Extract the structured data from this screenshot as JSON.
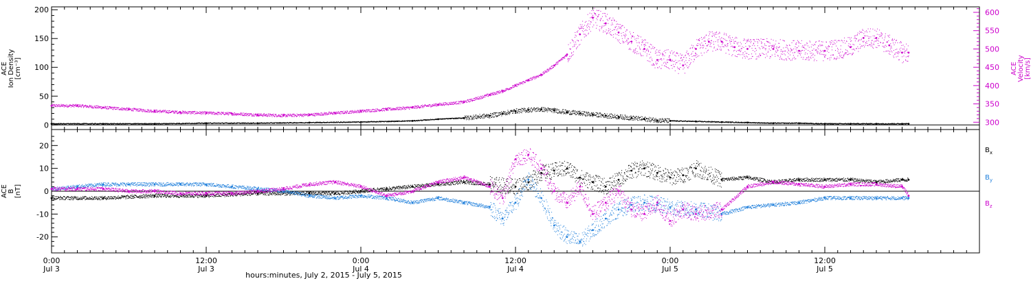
{
  "xlabel": "hours:minutes, July  2, 2015 - July  5, 2015",
  "x_ticks": [
    {
      "time": "0:00",
      "day": "Jul 3",
      "hour": 0
    },
    {
      "time": "12:00",
      "day": "Jul 3",
      "hour": 12
    },
    {
      "time": "0:00",
      "day": "Jul 4",
      "hour": 24
    },
    {
      "time": "12:00",
      "day": "Jul 4",
      "hour": 36
    },
    {
      "time": "0:00",
      "day": "Jul 5",
      "hour": 48
    },
    {
      "time": "12:00",
      "day": "Jul 5",
      "hour": 60
    }
  ],
  "chart_data": [
    {
      "type": "scatter",
      "xlim_hours": [
        0,
        72
      ],
      "ylabel": [
        "ACE",
        "Ion Density",
        "[cm⁻³]"
      ],
      "ylim": [
        -8,
        205
      ],
      "yticks": [
        0,
        50,
        100,
        150,
        200
      ],
      "y2label": [
        "ACE",
        "Velocity",
        "[km/s]"
      ],
      "y2lim": [
        280,
        615
      ],
      "y2ticks": [
        300,
        350,
        400,
        450,
        500,
        550,
        600
      ],
      "series": [
        {
          "axis": "left",
          "color": "#000000",
          "x": [
            0,
            4,
            8,
            12,
            16,
            20,
            24,
            28,
            30,
            32,
            34,
            35,
            36,
            37,
            38,
            39,
            40,
            41,
            42,
            43,
            44,
            45,
            46,
            47,
            48,
            50,
            52,
            54,
            56,
            58,
            60,
            62,
            64,
            66,
            66.5
          ],
          "y": [
            2,
            2,
            2,
            3,
            3,
            4,
            5,
            7,
            10,
            12,
            16,
            20,
            24,
            26,
            27,
            25,
            22,
            20,
            18,
            16,
            14,
            12,
            10,
            8,
            7,
            6,
            5,
            4,
            3,
            3,
            2,
            2,
            2,
            2,
            2
          ]
        },
        {
          "axis": "right",
          "color": "#cc00cc",
          "x": [
            0,
            2,
            4,
            6,
            8,
            10,
            12,
            14,
            16,
            18,
            20,
            22,
            24,
            26,
            28,
            30,
            32,
            34,
            35,
            36,
            37,
            38,
            39,
            40,
            41,
            42,
            43,
            44,
            45,
            46,
            47,
            48,
            49,
            50,
            51,
            52,
            53,
            54,
            56,
            58,
            60,
            62,
            63,
            64,
            65,
            66,
            66.5
          ],
          "y": [
            345,
            345,
            340,
            335,
            330,
            327,
            325,
            323,
            320,
            318,
            320,
            325,
            330,
            335,
            340,
            348,
            355,
            375,
            385,
            400,
            415,
            430,
            455,
            485,
            540,
            585,
            570,
            545,
            520,
            500,
            470,
            470,
            455,
            500,
            520,
            520,
            505,
            500,
            500,
            495,
            495,
            505,
            530,
            530,
            510,
            490,
            490
          ]
        }
      ]
    },
    {
      "type": "scatter",
      "xlim_hours": [
        0,
        72
      ],
      "ylabel": [
        "ACE",
        "B",
        "[nT]"
      ],
      "ylim": [
        -27,
        27
      ],
      "yticks": [
        -20,
        -10,
        0,
        10,
        20
      ],
      "legend_position": "right",
      "series": [
        {
          "name": "B",
          "sub": "x",
          "color": "#000000",
          "x": [
            0,
            4,
            8,
            12,
            16,
            20,
            22,
            24,
            26,
            28,
            30,
            32,
            34,
            36,
            37,
            38,
            39,
            40,
            41,
            42,
            43,
            44,
            45,
            46,
            47,
            48,
            49,
            50,
            52,
            54,
            56,
            58,
            60,
            62,
            64,
            66,
            66.5
          ],
          "y": [
            -3,
            -3,
            -2,
            -2,
            -1,
            -1,
            -1,
            0,
            1,
            2,
            3,
            4,
            3,
            2,
            4,
            8,
            9,
            10,
            6,
            4,
            2,
            5,
            9,
            10,
            8,
            6,
            7,
            10,
            5,
            6,
            4,
            5,
            5,
            5,
            4,
            5,
            5
          ]
        },
        {
          "name": "B",
          "sub": "y",
          "color": "#1f7fdb",
          "x": [
            0,
            2,
            4,
            6,
            8,
            10,
            12,
            14,
            16,
            18,
            20,
            22,
            24,
            26,
            28,
            30,
            32,
            34,
            35,
            36,
            37,
            38,
            39,
            40,
            41,
            42,
            43,
            44,
            45,
            46,
            47,
            48,
            49,
            50,
            52,
            54,
            56,
            58,
            60,
            62,
            64,
            66,
            66.5
          ],
          "y": [
            1,
            2,
            3,
            3,
            3,
            3,
            3,
            2,
            1,
            0,
            -2,
            -3,
            -2,
            -3,
            -5,
            -3,
            -5,
            -7,
            -12,
            -5,
            5,
            -3,
            -15,
            -20,
            -22,
            -17,
            -12,
            -8,
            -6,
            -5,
            -6,
            -7,
            -8,
            -8,
            -10,
            -7,
            -6,
            -5,
            -3,
            -3,
            -3,
            -3,
            -3
          ]
        },
        {
          "name": "B",
          "sub": "z",
          "color": "#cc00cc",
          "x": [
            0,
            2,
            4,
            6,
            8,
            10,
            12,
            14,
            16,
            18,
            20,
            22,
            24,
            26,
            28,
            30,
            32,
            34,
            35,
            36,
            37,
            38,
            39,
            40,
            41,
            42,
            43,
            44,
            45,
            46,
            47,
            48,
            49,
            50,
            52,
            54,
            56,
            58,
            60,
            62,
            64,
            66,
            66.5
          ],
          "y": [
            1,
            1,
            1,
            0,
            0,
            -1,
            -1,
            -1,
            0,
            1,
            3,
            4,
            2,
            -2,
            0,
            4,
            6,
            2,
            -3,
            14,
            16,
            10,
            0,
            -5,
            2,
            -10,
            -5,
            0,
            -8,
            -10,
            -5,
            -13,
            -8,
            -10,
            -8,
            2,
            4,
            3,
            2,
            3,
            3,
            2,
            -2
          ]
        }
      ]
    }
  ]
}
